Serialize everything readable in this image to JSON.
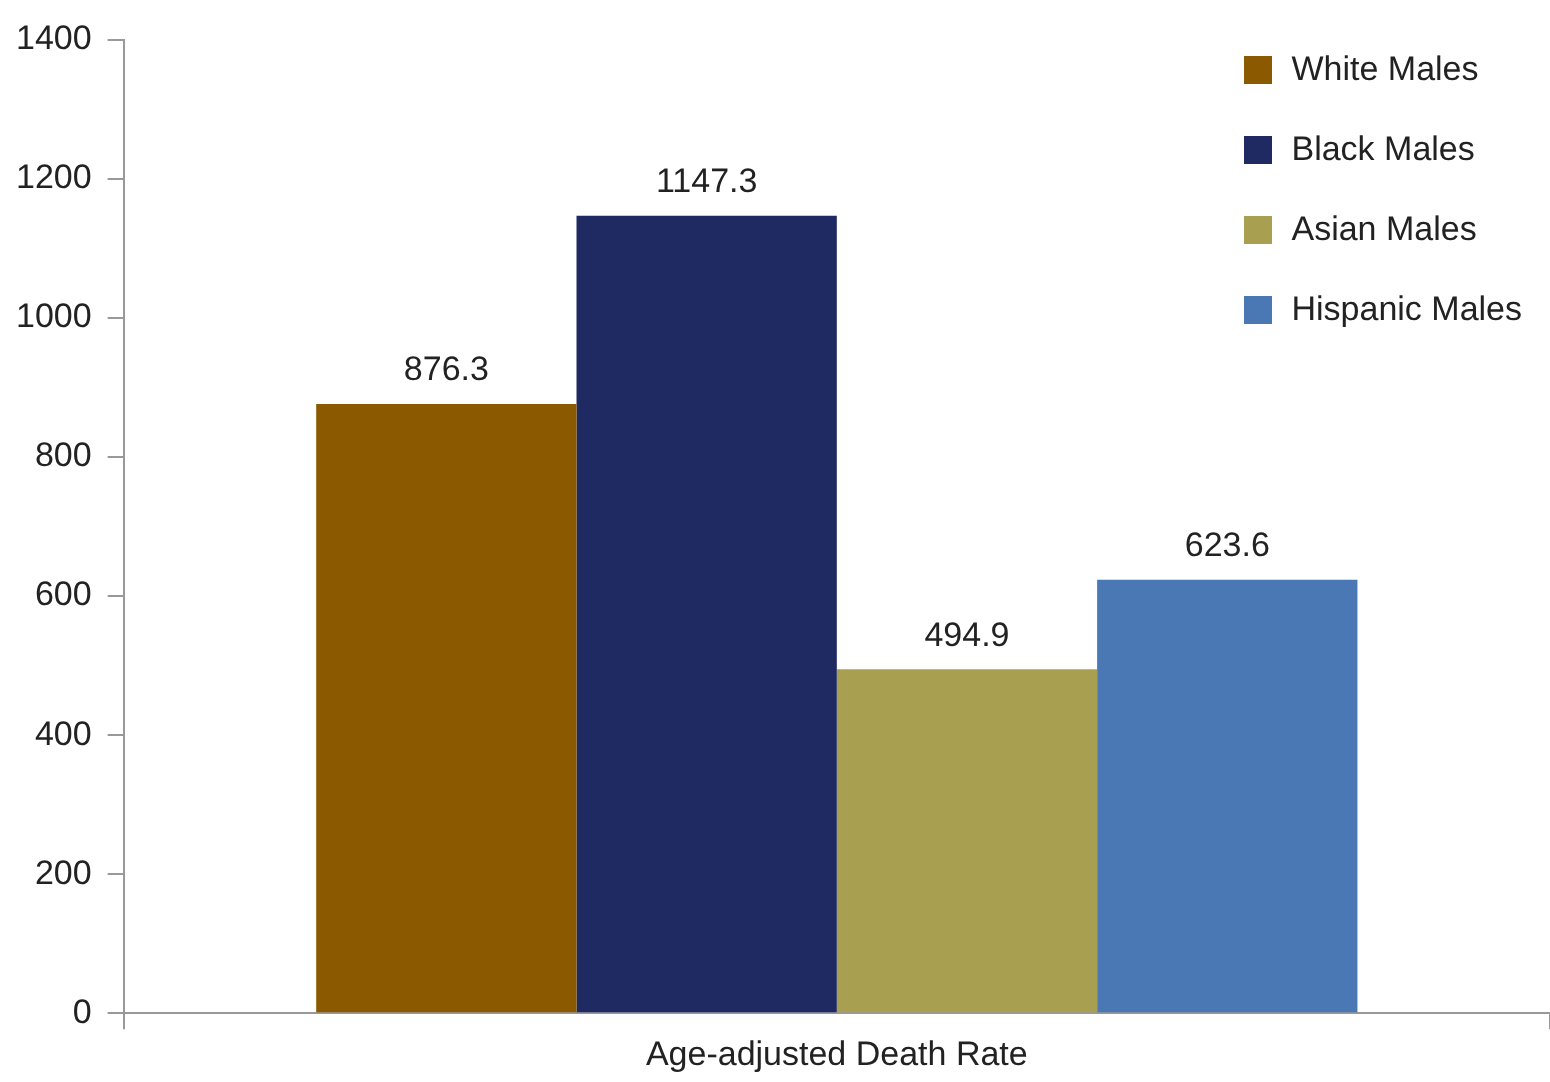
{
  "chart_data": {
    "type": "bar",
    "categories": [
      "Age-adjusted Death Rate"
    ],
    "series": [
      {
        "name": "White Males",
        "color": "#8b5a00",
        "values": [
          876.3
        ]
      },
      {
        "name": "Black Males",
        "color": "#1f2a63",
        "values": [
          1147.3
        ]
      },
      {
        "name": "Asian Males",
        "color": "#a8a050",
        "values": [
          494.9
        ]
      },
      {
        "name": "Hispanic Males",
        "color": "#4a78b4",
        "values": [
          623.6
        ]
      }
    ],
    "ylim": [
      0,
      1400
    ],
    "yticks": [
      0,
      200,
      400,
      600,
      800,
      1000,
      1200,
      1400
    ],
    "grid": false,
    "legend": "top right",
    "data_labels": true
  }
}
